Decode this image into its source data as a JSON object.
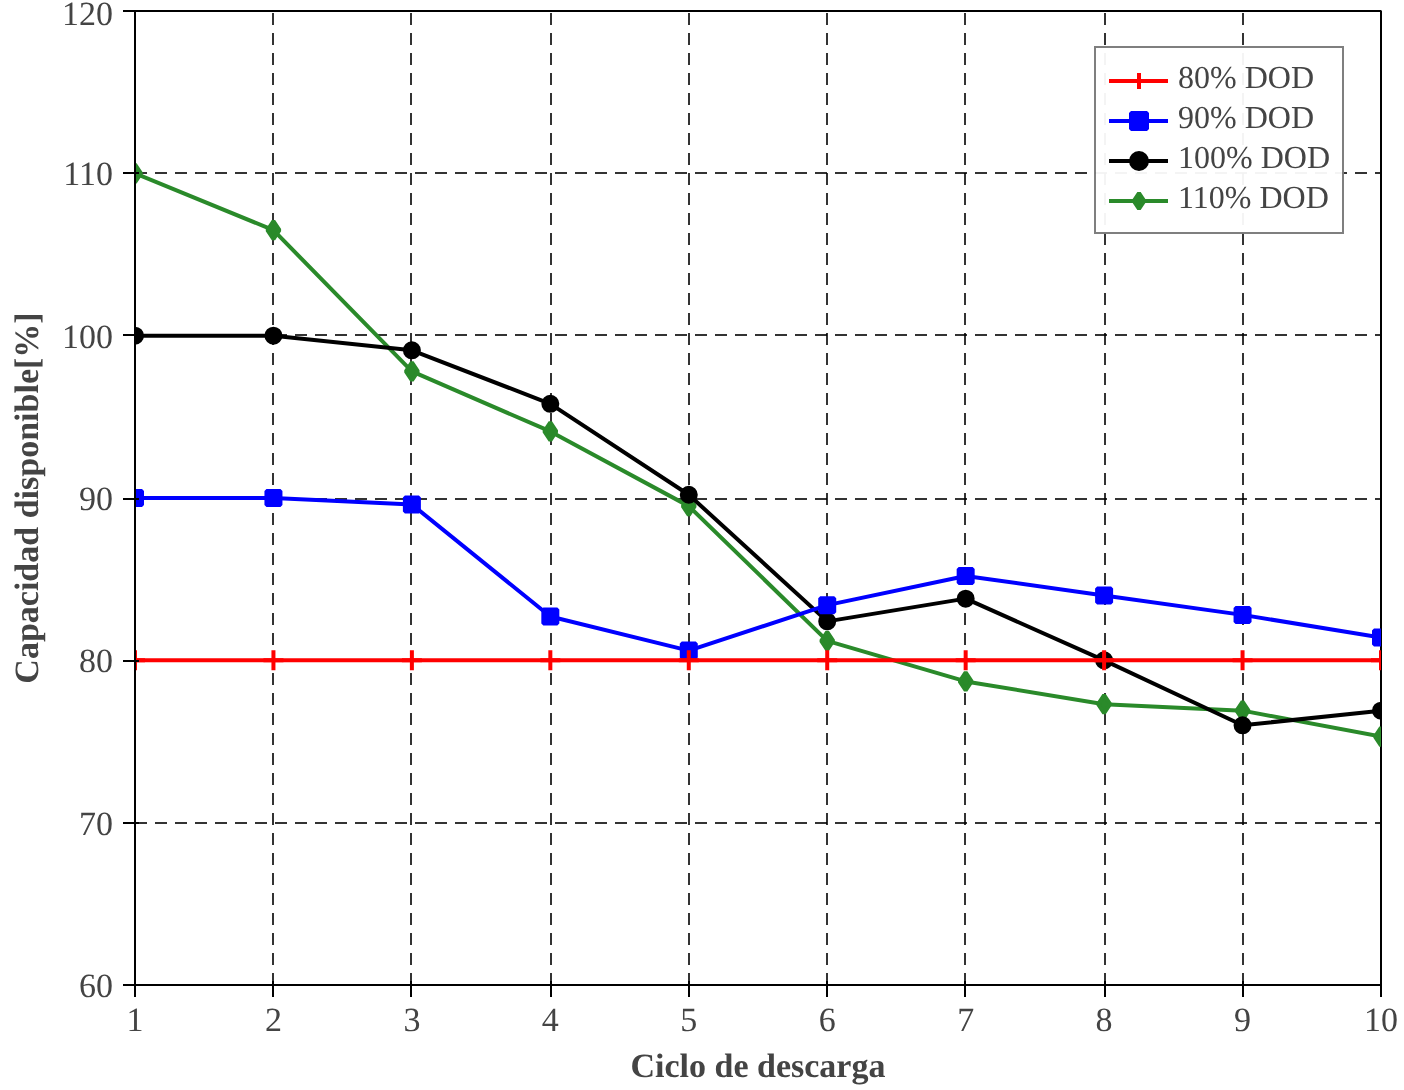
{
  "chart_data": {
    "type": "line",
    "xlabel": "Ciclo de descarga",
    "ylabel": "Capacidad disponible[%]",
    "x": [
      1,
      2,
      3,
      4,
      5,
      6,
      7,
      8,
      9,
      10
    ],
    "xlim": [
      1,
      10
    ],
    "xticks": [
      1,
      2,
      3,
      4,
      5,
      6,
      7,
      8,
      9,
      10
    ],
    "ylim": [
      60,
      120
    ],
    "yticks": [
      60,
      70,
      80,
      90,
      100,
      110,
      120
    ],
    "grid": true,
    "legend": "top right",
    "series": [
      {
        "name": "80% DOD",
        "color": "#ff0000",
        "marker": "cross",
        "values": [
          80,
          80,
          80,
          80,
          80,
          80,
          80,
          80,
          80,
          80
        ]
      },
      {
        "name": "90% DOD",
        "color": "#0000ff",
        "marker": "square",
        "values": [
          90,
          90,
          89.6,
          82.7,
          80.6,
          83.4,
          85.2,
          84.0,
          82.8,
          81.4
        ]
      },
      {
        "name": "100% DOD",
        "color": "#000000",
        "marker": "circle",
        "values": [
          100,
          100,
          99.1,
          95.8,
          90.2,
          82.4,
          83.8,
          80.0,
          76.0,
          76.9
        ]
      },
      {
        "name": "110% DOD",
        "color": "#2a8a2a",
        "marker": "diamond",
        "values": [
          110,
          106.5,
          97.8,
          94.1,
          89.5,
          81.2,
          78.7,
          77.3,
          76.9,
          75.3
        ]
      }
    ]
  }
}
